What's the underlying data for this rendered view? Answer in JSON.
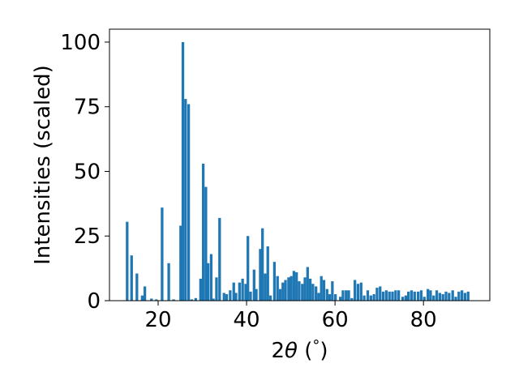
{
  "chart_data": {
    "type": "bar",
    "title": "",
    "xlabel": "2θ (°)",
    "ylabel": "Intensities (scaled)",
    "xlim": [
      9,
      95
    ],
    "ylim": [
      0,
      105
    ],
    "xticks": [
      20,
      40,
      60,
      80
    ],
    "yticks": [
      0,
      25,
      50,
      75,
      100
    ],
    "grid": false,
    "bar_color": "#1f77b4",
    "bar_width": 0.6,
    "x": [
      13.0,
      14.0,
      15.2,
      16.4,
      17.0,
      18.5,
      19.6,
      20.9,
      22.4,
      23.5,
      25.1,
      25.6,
      26.2,
      26.9,
      27.6,
      28.5,
      29.6,
      30.2,
      30.8,
      31.3,
      32.0,
      32.5,
      33.2,
      33.9,
      34.9,
      35.5,
      36.3,
      37.1,
      37.6,
      38.4,
      39.1,
      39.8,
      40.3,
      40.9,
      41.7,
      42.2,
      43.1,
      43.6,
      44.2,
      44.8,
      45.4,
      46.3,
      47.0,
      47.6,
      48.2,
      48.8,
      49.5,
      50.1,
      50.7,
      51.3,
      51.9,
      52.6,
      53.2,
      53.8,
      54.4,
      55.0,
      55.7,
      56.3,
      56.9,
      57.5,
      58.2,
      58.8,
      59.4,
      60.1,
      61.2,
      61.8,
      62.5,
      63.1,
      63.8,
      64.5,
      65.2,
      65.9,
      66.6,
      67.4,
      68.1,
      68.8,
      69.5,
      70.2,
      70.9,
      71.6,
      72.3,
      73.0,
      73.7,
      74.4,
      75.3,
      76.0,
      76.6,
      77.3,
      78.0,
      78.8,
      79.5,
      80.2,
      81.0,
      81.6,
      82.3,
      83.0,
      83.7,
      84.4,
      85.1,
      85.8,
      86.6,
      87.3,
      88.0,
      88.7,
      89.4,
      90.1
    ],
    "values": [
      30.5,
      17.5,
      10.5,
      2.0,
      5.5,
      0.8,
      0.5,
      36.0,
      14.5,
      0.5,
      29.0,
      100.0,
      78.0,
      76.0,
      0.5,
      1.0,
      8.5,
      53.0,
      44.0,
      14.5,
      18.0,
      0.8,
      9.0,
      32.0,
      3.0,
      2.5,
      4.0,
      7.0,
      3.0,
      7.0,
      8.5,
      6.5,
      25.0,
      3.5,
      12.0,
      4.5,
      20.0,
      28.0,
      10.5,
      21.0,
      2.0,
      15.0,
      9.5,
      4.5,
      7.0,
      8.0,
      9.0,
      9.5,
      11.5,
      11.0,
      7.5,
      6.5,
      9.0,
      13.0,
      8.5,
      6.5,
      5.5,
      3.0,
      9.5,
      8.0,
      4.5,
      2.5,
      7.5,
      2.5,
      1.5,
      4.0,
      4.0,
      4.0,
      1.0,
      8.0,
      6.5,
      7.0,
      2.0,
      4.0,
      2.0,
      2.5,
      5.0,
      5.5,
      3.5,
      4.0,
      3.5,
      3.5,
      4.0,
      4.0,
      1.5,
      2.0,
      3.5,
      4.0,
      3.5,
      3.5,
      4.0,
      1.5,
      4.5,
      4.0,
      2.0,
      4.0,
      3.0,
      2.5,
      3.5,
      3.0,
      4.0,
      1.5,
      3.5,
      4.0,
      3.0,
      3.5
    ],
    "ylabel_display": "Intensities (scaled)"
  }
}
